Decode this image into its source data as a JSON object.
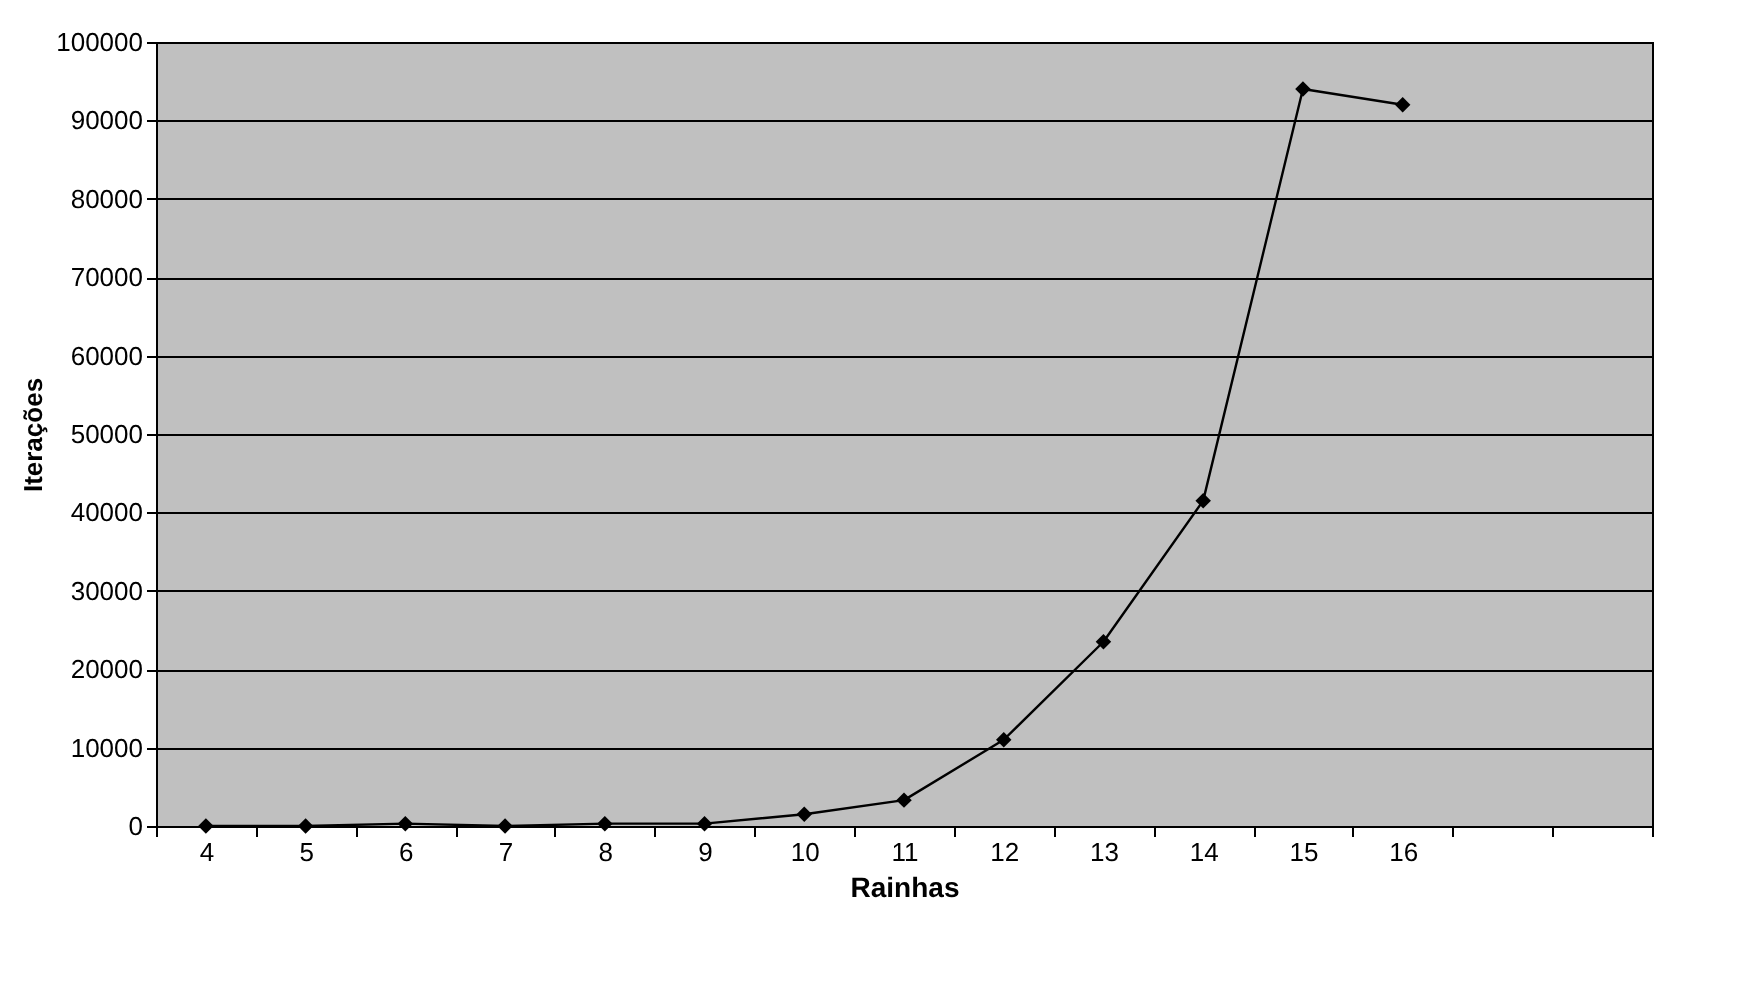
{
  "chart_data": {
    "type": "line",
    "xlabel": "Rainhas",
    "ylabel": "Iterações",
    "categories": [
      "4",
      "5",
      "6",
      "7",
      "8",
      "9",
      "10",
      "11",
      "12",
      "13",
      "14",
      "15",
      "16",
      null,
      null
    ],
    "series": [
      {
        "color": "#000000",
        "values": [
          0,
          0,
          300,
          0,
          300,
          300,
          1500,
          3300,
          11000,
          23500,
          41500,
          94000,
          92000,
          null,
          null
        ]
      }
    ],
    "ylim": [
      0,
      100000
    ],
    "yticks": [
      0,
      10000,
      20000,
      30000,
      40000,
      50000,
      60000,
      70000,
      80000,
      90000,
      100000
    ],
    "grid": "y",
    "marker": "diamond",
    "line_style": "solid",
    "legend": false
  }
}
